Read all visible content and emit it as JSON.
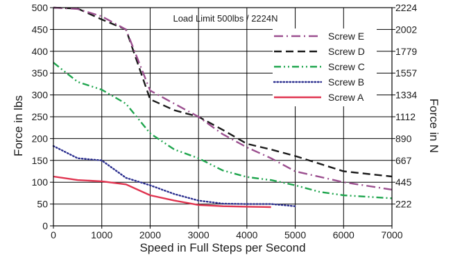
{
  "chart_data": {
    "type": "line",
    "xlabel": "Speed in Full Steps per Second",
    "ylabel": "Force in lbs",
    "y2label": "Force in N",
    "xlim": [
      0,
      7000
    ],
    "ylim": [
      0,
      500
    ],
    "x_ticks": [
      0,
      1000,
      2000,
      3000,
      4000,
      5000,
      6000,
      7000
    ],
    "y_ticks": [
      0,
      50,
      100,
      150,
      200,
      250,
      300,
      350,
      400,
      450,
      500
    ],
    "y2_ticks": [
      {
        "lbs": 50,
        "label": "222"
      },
      {
        "lbs": 100,
        "label": "445"
      },
      {
        "lbs": 150,
        "label": "667"
      },
      {
        "lbs": 200,
        "label": "890"
      },
      {
        "lbs": 250,
        "label": "1112"
      },
      {
        "lbs": 300,
        "label": "1334"
      },
      {
        "lbs": 350,
        "label": "1557"
      },
      {
        "lbs": 400,
        "label": "1779"
      },
      {
        "lbs": 450,
        "label": "2002"
      },
      {
        "lbs": 500,
        "label": "2224"
      }
    ],
    "grid": true,
    "legend_position": "top-right",
    "annotation": {
      "text": "Load Limit 500lbs / 2224N",
      "y": 500
    },
    "series": [
      {
        "name": "Screw E",
        "color": "#9b4f8f",
        "dash": "dashdot",
        "points": [
          [
            0,
            500
          ],
          [
            500,
            497
          ],
          [
            1000,
            480
          ],
          [
            1500,
            450
          ],
          [
            2000,
            310
          ],
          [
            2500,
            280
          ],
          [
            3000,
            250
          ],
          [
            3500,
            210
          ],
          [
            4000,
            180
          ],
          [
            4500,
            155
          ],
          [
            5000,
            125
          ],
          [
            6000,
            100
          ],
          [
            7000,
            83
          ]
        ]
      },
      {
        "name": "Screw D",
        "color": "#1a1a1a",
        "dash": "dash",
        "points": [
          [
            0,
            500
          ],
          [
            500,
            498
          ],
          [
            1000,
            473
          ],
          [
            1500,
            450
          ],
          [
            2000,
            290
          ],
          [
            2500,
            265
          ],
          [
            3000,
            250
          ],
          [
            3500,
            220
          ],
          [
            4000,
            188
          ],
          [
            4500,
            175
          ],
          [
            5000,
            160
          ],
          [
            6000,
            125
          ],
          [
            7000,
            113
          ]
        ]
      },
      {
        "name": "Screw C",
        "color": "#1ea54d",
        "dash": "dashdotdot",
        "points": [
          [
            0,
            374
          ],
          [
            500,
            330
          ],
          [
            1000,
            312
          ],
          [
            1500,
            280
          ],
          [
            2000,
            212
          ],
          [
            2500,
            175
          ],
          [
            3000,
            155
          ],
          [
            3500,
            127
          ],
          [
            4000,
            112
          ],
          [
            4500,
            105
          ],
          [
            5000,
            93
          ],
          [
            5500,
            78
          ],
          [
            6000,
            70
          ],
          [
            7000,
            63
          ]
        ]
      },
      {
        "name": "Screw B",
        "color": "#2b2f8f",
        "dash": "dot",
        "points": [
          [
            0,
            183
          ],
          [
            500,
            155
          ],
          [
            1000,
            150
          ],
          [
            1500,
            110
          ],
          [
            2000,
            93
          ],
          [
            2500,
            73
          ],
          [
            3000,
            58
          ],
          [
            3500,
            51
          ],
          [
            4000,
            50
          ],
          [
            4500,
            50
          ],
          [
            5000,
            45
          ]
        ]
      },
      {
        "name": "Screw A",
        "color": "#e0334f",
        "dash": "solid",
        "points": [
          [
            0,
            113
          ],
          [
            500,
            105
          ],
          [
            1000,
            102
          ],
          [
            1500,
            95
          ],
          [
            2000,
            70
          ],
          [
            2500,
            58
          ],
          [
            3000,
            48
          ],
          [
            3500,
            45
          ],
          [
            4000,
            44
          ],
          [
            4500,
            43
          ]
        ]
      }
    ]
  }
}
